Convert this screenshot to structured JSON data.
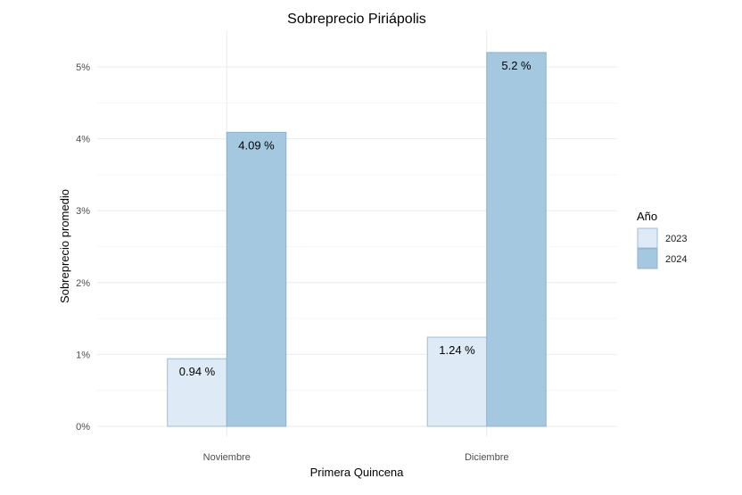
{
  "chart_data": {
    "type": "bar",
    "title": "Sobreprecio Piriápolis",
    "xlabel": "Primera Quincena",
    "ylabel": "Sobreprecio promedio",
    "categories": [
      "Noviembre",
      "Diciembre"
    ],
    "series": [
      {
        "name": "2023",
        "values": [
          0.94,
          1.24
        ],
        "labels": [
          "0.94 %",
          "1.24 %"
        ],
        "fill": "#deebf7",
        "stroke": "#9ebcd8"
      },
      {
        "name": "2024",
        "values": [
          4.09,
          5.2
        ],
        "labels": [
          "4.09 %",
          "5.2 %"
        ],
        "fill": "#a5c8e1",
        "stroke": "#8fb1cc"
      }
    ],
    "ylim": [
      0,
      5.4
    ],
    "yticks": [
      0,
      1,
      2,
      3,
      4,
      5
    ],
    "ytick_labels": [
      "0%",
      "1%",
      "2%",
      "3%",
      "4%",
      "5%"
    ],
    "legend": {
      "title": "Año",
      "position": "right"
    },
    "grid": true
  }
}
